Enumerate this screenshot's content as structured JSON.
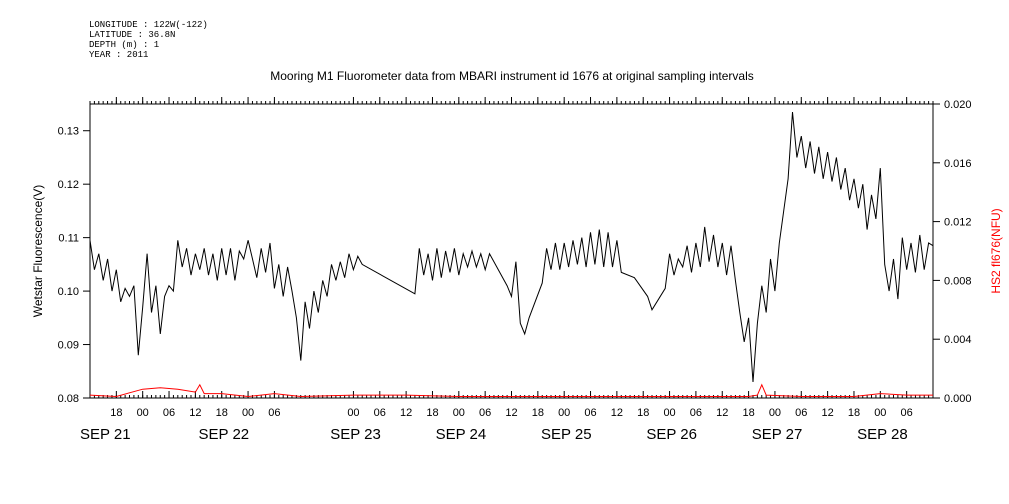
{
  "meta": {
    "longitude": "LONGITUDE : 122W(-122)",
    "latitude": "LATITUDE : 36.8N",
    "depth": "DEPTH (m) : 1",
    "year": "YEAR : 2011"
  },
  "chart_data": {
    "type": "line",
    "title": "Mooring M1 Fluorometer data from MBARI instrument id 1676 at original sampling intervals",
    "ylabel": "Wetstar Fluorescence(V)",
    "y2label": "HS2 fl676(NFU)",
    "x_range": [
      "2011-09-20T12:00",
      "2011-09-28T12:00"
    ],
    "ylim": [
      0.08,
      0.135
    ],
    "y2lim": [
      0.0,
      0.02
    ],
    "y_ticks": [
      "0.08",
      "0.09",
      "0.10",
      "0.11",
      "0.12",
      "0.13"
    ],
    "y2_ticks": [
      "0.000",
      "0.004",
      "0.008",
      "0.012",
      "0.016",
      "0.020"
    ],
    "x_hour_labels": [
      {
        "t": "2011-09-20T18:00",
        "label": "18"
      },
      {
        "t": "2011-09-21T00:00",
        "label": "00"
      },
      {
        "t": "2011-09-21T06:00",
        "label": "06"
      },
      {
        "t": "2011-09-21T12:00",
        "label": "12"
      },
      {
        "t": "2011-09-21T18:00",
        "label": "18"
      },
      {
        "t": "2011-09-22T00:00",
        "label": "00"
      },
      {
        "t": "2011-09-22T06:00",
        "label": "06"
      },
      {
        "t": "2011-09-23T00:00",
        "label": "00"
      },
      {
        "t": "2011-09-23T06:00",
        "label": "06"
      },
      {
        "t": "2011-09-23T12:00",
        "label": "12"
      },
      {
        "t": "2011-09-23T18:00",
        "label": "18"
      },
      {
        "t": "2011-09-24T00:00",
        "label": "00"
      },
      {
        "t": "2011-09-24T06:00",
        "label": "06"
      },
      {
        "t": "2011-09-24T12:00",
        "label": "12"
      },
      {
        "t": "2011-09-24T18:00",
        "label": "18"
      },
      {
        "t": "2011-09-25T00:00",
        "label": "00"
      },
      {
        "t": "2011-09-25T06:00",
        "label": "06"
      },
      {
        "t": "2011-09-25T12:00",
        "label": "12"
      },
      {
        "t": "2011-09-25T18:00",
        "label": "18"
      },
      {
        "t": "2011-09-26T00:00",
        "label": "00"
      },
      {
        "t": "2011-09-26T06:00",
        "label": "06"
      },
      {
        "t": "2011-09-26T12:00",
        "label": "12"
      },
      {
        "t": "2011-09-26T18:00",
        "label": "18"
      },
      {
        "t": "2011-09-27T00:00",
        "label": "00"
      },
      {
        "t": "2011-09-27T06:00",
        "label": "06"
      },
      {
        "t": "2011-09-27T12:00",
        "label": "12"
      },
      {
        "t": "2011-09-27T18:00",
        "label": "18"
      },
      {
        "t": "2011-09-28T00:00",
        "label": "00"
      },
      {
        "t": "2011-09-28T06:00",
        "label": "06"
      }
    ],
    "x_day_labels": [
      {
        "t": "2011-09-20T12:00",
        "label": "SEP 21"
      },
      {
        "t": "2011-09-21T15:00",
        "label": "SEP 22"
      },
      {
        "t": "2011-09-22T21:00",
        "label": "SEP 23"
      },
      {
        "t": "2011-09-23T21:00",
        "label": "SEP 24"
      },
      {
        "t": "2011-09-24T21:00",
        "label": "SEP 25"
      },
      {
        "t": "2011-09-25T21:00",
        "label": "SEP 26"
      },
      {
        "t": "2011-09-26T21:00",
        "label": "SEP 27"
      },
      {
        "t": "2011-09-27T21:00",
        "label": "SEP 28"
      }
    ],
    "series": [
      {
        "axis": "left",
        "color": "#000000",
        "points": [
          [
            "2011-09-20T12:00",
            0.1095
          ],
          [
            "2011-09-20T13:00",
            0.104
          ],
          [
            "2011-09-20T14:00",
            0.107
          ],
          [
            "2011-09-20T15:00",
            0.102
          ],
          [
            "2011-09-20T16:00",
            0.106
          ],
          [
            "2011-09-20T17:00",
            0.1
          ],
          [
            "2011-09-20T18:00",
            0.104
          ],
          [
            "2011-09-20T19:00",
            0.098
          ],
          [
            "2011-09-20T20:00",
            0.1005
          ],
          [
            "2011-09-20T21:00",
            0.099
          ],
          [
            "2011-09-20T22:00",
            0.101
          ],
          [
            "2011-09-20T23:00",
            0.088
          ],
          [
            "2011-09-21T00:00",
            0.097
          ],
          [
            "2011-09-21T01:00",
            0.107
          ],
          [
            "2011-09-21T02:00",
            0.096
          ],
          [
            "2011-09-21T03:00",
            0.101
          ],
          [
            "2011-09-21T04:00",
            0.092
          ],
          [
            "2011-09-21T05:00",
            0.099
          ],
          [
            "2011-09-21T06:00",
            0.101
          ],
          [
            "2011-09-21T07:00",
            0.1
          ],
          [
            "2011-09-21T08:00",
            0.1095
          ],
          [
            "2011-09-21T09:00",
            0.1045
          ],
          [
            "2011-09-21T10:00",
            0.108
          ],
          [
            "2011-09-21T11:00",
            0.103
          ],
          [
            "2011-09-21T12:00",
            0.107
          ],
          [
            "2011-09-21T13:00",
            0.104
          ],
          [
            "2011-09-21T14:00",
            0.108
          ],
          [
            "2011-09-21T15:00",
            0.103
          ],
          [
            "2011-09-21T16:00",
            0.107
          ],
          [
            "2011-09-21T17:00",
            0.102
          ],
          [
            "2011-09-21T18:00",
            0.108
          ],
          [
            "2011-09-21T19:00",
            0.103
          ],
          [
            "2011-09-21T20:00",
            0.108
          ],
          [
            "2011-09-21T21:00",
            0.102
          ],
          [
            "2011-09-21T22:00",
            0.1075
          ],
          [
            "2011-09-21T23:00",
            0.106
          ],
          [
            "2011-09-22T00:00",
            0.1095
          ],
          [
            "2011-09-22T01:00",
            0.106
          ],
          [
            "2011-09-22T02:00",
            0.1025
          ],
          [
            "2011-09-22T03:00",
            0.108
          ],
          [
            "2011-09-22T04:00",
            0.1035
          ],
          [
            "2011-09-22T05:00",
            0.109
          ],
          [
            "2011-09-22T06:00",
            0.1005
          ],
          [
            "2011-09-22T07:00",
            0.105
          ],
          [
            "2011-09-22T08:00",
            0.099
          ],
          [
            "2011-09-22T09:00",
            0.1045
          ],
          [
            "2011-09-22T10:00",
            0.1
          ],
          [
            "2011-09-22T11:00",
            0.095
          ],
          [
            "2011-09-22T12:00",
            0.087
          ],
          [
            "2011-09-22T13:00",
            0.098
          ],
          [
            "2011-09-22T14:00",
            0.093
          ],
          [
            "2011-09-22T15:00",
            0.1
          ],
          [
            "2011-09-22T16:00",
            0.096
          ],
          [
            "2011-09-22T17:00",
            0.102
          ],
          [
            "2011-09-22T18:00",
            0.099
          ],
          [
            "2011-09-22T19:00",
            0.105
          ],
          [
            "2011-09-22T20:00",
            0.102
          ],
          [
            "2011-09-22T21:00",
            0.1055
          ],
          [
            "2011-09-22T22:00",
            0.1025
          ],
          [
            "2011-09-22T23:00",
            0.107
          ],
          [
            "2011-09-23T00:00",
            0.104
          ],
          [
            "2011-09-23T01:00",
            0.1065
          ],
          [
            "2011-09-23T02:00",
            0.105
          ],
          [
            "2011-09-23T14:00",
            0.0995
          ],
          [
            "2011-09-23T15:00",
            0.108
          ],
          [
            "2011-09-23T16:00",
            0.103
          ],
          [
            "2011-09-23T17:00",
            0.107
          ],
          [
            "2011-09-23T18:00",
            0.102
          ],
          [
            "2011-09-23T19:00",
            0.108
          ],
          [
            "2011-09-23T20:00",
            0.1025
          ],
          [
            "2011-09-23T21:00",
            0.1075
          ],
          [
            "2011-09-23T22:00",
            0.1035
          ],
          [
            "2011-09-23T23:00",
            0.108
          ],
          [
            "2011-09-24T00:00",
            0.103
          ],
          [
            "2011-09-24T01:00",
            0.107
          ],
          [
            "2011-09-24T02:00",
            0.1045
          ],
          [
            "2011-09-24T03:00",
            0.1075
          ],
          [
            "2011-09-24T04:00",
            0.1045
          ],
          [
            "2011-09-24T05:00",
            0.107
          ],
          [
            "2011-09-24T06:00",
            0.104
          ],
          [
            "2011-09-24T07:00",
            0.107
          ],
          [
            "2011-09-24T11:00",
            0.101
          ],
          [
            "2011-09-24T12:00",
            0.099
          ],
          [
            "2011-09-24T13:00",
            0.1055
          ],
          [
            "2011-09-24T14:00",
            0.094
          ],
          [
            "2011-09-24T15:00",
            0.092
          ],
          [
            "2011-09-24T16:00",
            0.095
          ],
          [
            "2011-09-24T19:00",
            0.1015
          ],
          [
            "2011-09-24T20:00",
            0.108
          ],
          [
            "2011-09-24T21:00",
            0.104
          ],
          [
            "2011-09-24T22:00",
            0.109
          ],
          [
            "2011-09-24T23:00",
            0.104
          ],
          [
            "2011-09-25T00:00",
            0.109
          ],
          [
            "2011-09-25T01:00",
            0.1045
          ],
          [
            "2011-09-25T02:00",
            0.1095
          ],
          [
            "2011-09-25T03:00",
            0.105
          ],
          [
            "2011-09-25T04:00",
            0.11
          ],
          [
            "2011-09-25T05:00",
            0.1045
          ],
          [
            "2011-09-25T06:00",
            0.111
          ],
          [
            "2011-09-25T07:00",
            0.105
          ],
          [
            "2011-09-25T08:00",
            0.1115
          ],
          [
            "2011-09-25T09:00",
            0.1045
          ],
          [
            "2011-09-25T10:00",
            0.111
          ],
          [
            "2011-09-25T11:00",
            0.1045
          ],
          [
            "2011-09-25T12:00",
            0.1095
          ],
          [
            "2011-09-25T13:00",
            0.1035
          ],
          [
            "2011-09-25T16:00",
            0.1025
          ],
          [
            "2011-09-25T19:00",
            0.099
          ],
          [
            "2011-09-25T20:00",
            0.0965
          ],
          [
            "2011-09-25T23:00",
            0.1005
          ],
          [
            "2011-09-26T00:00",
            0.107
          ],
          [
            "2011-09-26T01:00",
            0.103
          ],
          [
            "2011-09-26T02:00",
            0.106
          ],
          [
            "2011-09-26T03:00",
            0.1045
          ],
          [
            "2011-09-26T04:00",
            0.1085
          ],
          [
            "2011-09-26T05:00",
            0.1035
          ],
          [
            "2011-09-26T06:00",
            0.109
          ],
          [
            "2011-09-26T07:00",
            0.1045
          ],
          [
            "2011-09-26T08:00",
            0.112
          ],
          [
            "2011-09-26T09:00",
            0.1055
          ],
          [
            "2011-09-26T10:00",
            0.1105
          ],
          [
            "2011-09-26T11:00",
            0.1045
          ],
          [
            "2011-09-26T12:00",
            0.109
          ],
          [
            "2011-09-26T13:00",
            0.103
          ],
          [
            "2011-09-26T14:00",
            0.1085
          ],
          [
            "2011-09-26T15:00",
            0.102
          ],
          [
            "2011-09-26T16:00",
            0.096
          ],
          [
            "2011-09-26T17:00",
            0.0905
          ],
          [
            "2011-09-26T18:00",
            0.095
          ],
          [
            "2011-09-26T19:00",
            0.083
          ],
          [
            "2011-09-26T20:00",
            0.094
          ],
          [
            "2011-09-26T21:00",
            0.101
          ],
          [
            "2011-09-26T22:00",
            0.096
          ],
          [
            "2011-09-26T23:00",
            0.106
          ],
          [
            "2011-09-27T00:00",
            0.1
          ],
          [
            "2011-09-27T01:00",
            0.109
          ],
          [
            "2011-09-27T02:00",
            0.115
          ],
          [
            "2011-09-27T03:00",
            0.121
          ],
          [
            "2011-09-27T04:00",
            0.1335
          ],
          [
            "2011-09-27T05:00",
            0.125
          ],
          [
            "2011-09-27T06:00",
            0.129
          ],
          [
            "2011-09-27T07:00",
            0.123
          ],
          [
            "2011-09-27T08:00",
            0.128
          ],
          [
            "2011-09-27T09:00",
            0.122
          ],
          [
            "2011-09-27T10:00",
            0.127
          ],
          [
            "2011-09-27T11:00",
            0.121
          ],
          [
            "2011-09-27T12:00",
            0.126
          ],
          [
            "2011-09-27T13:00",
            0.1205
          ],
          [
            "2011-09-27T14:00",
            0.125
          ],
          [
            "2011-09-27T15:00",
            0.119
          ],
          [
            "2011-09-27T16:00",
            0.123
          ],
          [
            "2011-09-27T17:00",
            0.117
          ],
          [
            "2011-09-27T18:00",
            0.121
          ],
          [
            "2011-09-27T19:00",
            0.1155
          ],
          [
            "2011-09-27T20:00",
            0.12
          ],
          [
            "2011-09-27T21:00",
            0.1115
          ],
          [
            "2011-09-27T22:00",
            0.118
          ],
          [
            "2011-09-27T23:00",
            0.1135
          ],
          [
            "2011-09-28T00:00",
            0.123
          ],
          [
            "2011-09-28T01:00",
            0.105
          ],
          [
            "2011-09-28T02:00",
            0.1
          ],
          [
            "2011-09-28T03:00",
            0.106
          ],
          [
            "2011-09-28T04:00",
            0.0985
          ],
          [
            "2011-09-28T05:00",
            0.11
          ],
          [
            "2011-09-28T06:00",
            0.104
          ],
          [
            "2011-09-28T07:00",
            0.109
          ],
          [
            "2011-09-28T08:00",
            0.1035
          ],
          [
            "2011-09-28T09:00",
            0.1105
          ],
          [
            "2011-09-28T10:00",
            0.104
          ],
          [
            "2011-09-28T11:00",
            0.109
          ],
          [
            "2011-09-28T12:00",
            0.1085
          ]
        ]
      },
      {
        "axis": "right",
        "color": "#ff0000",
        "points": [
          [
            "2011-09-20T12:00",
            0.0002
          ],
          [
            "2011-09-20T18:00",
            0.0001
          ],
          [
            "2011-09-21T00:00",
            0.0006
          ],
          [
            "2011-09-21T04:00",
            0.0007
          ],
          [
            "2011-09-21T08:00",
            0.0006
          ],
          [
            "2011-09-21T12:00",
            0.0004
          ],
          [
            "2011-09-21T13:00",
            0.0009
          ],
          [
            "2011-09-21T14:00",
            0.0003
          ],
          [
            "2011-09-21T18:00",
            0.0003
          ],
          [
            "2011-09-22T00:00",
            0.0001
          ],
          [
            "2011-09-22T06:00",
            0.0003
          ],
          [
            "2011-09-22T12:00",
            0.0001
          ],
          [
            "2011-09-23T00:00",
            0.0002
          ],
          [
            "2011-09-23T12:00",
            0.0002
          ],
          [
            "2011-09-24T00:00",
            0.0001
          ],
          [
            "2011-09-24T12:00",
            0.0001
          ],
          [
            "2011-09-25T00:00",
            0.0001
          ],
          [
            "2011-09-25T12:00",
            0.0001
          ],
          [
            "2011-09-26T00:00",
            0.0001
          ],
          [
            "2011-09-26T12:00",
            0.0001
          ],
          [
            "2011-09-26T18:00",
            0.0001
          ],
          [
            "2011-09-26T20:00",
            0.0002
          ],
          [
            "2011-09-26T21:00",
            0.0009
          ],
          [
            "2011-09-26T22:00",
            0.0002
          ],
          [
            "2011-09-27T06:00",
            0.0001
          ],
          [
            "2011-09-27T18:00",
            0.0001
          ],
          [
            "2011-09-28T00:00",
            0.0003
          ],
          [
            "2011-09-28T06:00",
            0.0002
          ],
          [
            "2011-09-28T12:00",
            0.0002
          ]
        ]
      }
    ]
  }
}
